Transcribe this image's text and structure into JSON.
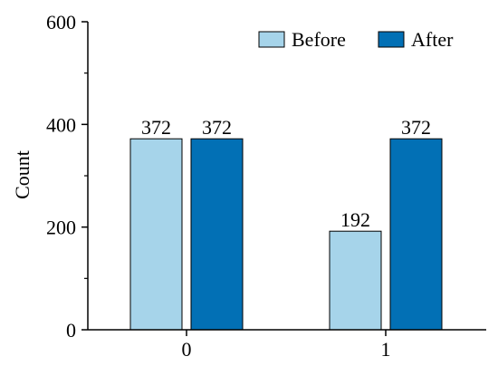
{
  "chart_data": {
    "type": "bar",
    "categories": [
      "0",
      "1"
    ],
    "series": [
      {
        "name": "Before",
        "values": [
          372,
          192
        ],
        "color": "#a6d4ea"
      },
      {
        "name": "After",
        "values": [
          372,
          372
        ],
        "color": "#0270b5"
      }
    ],
    "xlabel": "",
    "ylabel": "Count",
    "ylim": [
      0,
      600
    ],
    "yticks": [
      0,
      200,
      400,
      600
    ],
    "ytick_labels": [
      "0",
      "200",
      "400",
      "600"
    ],
    "data_labels": [
      [
        "372",
        "192"
      ],
      [
        "372",
        "372"
      ]
    ],
    "legend": {
      "position": "top-right",
      "entries": [
        "Before",
        "After"
      ]
    },
    "grid": false
  }
}
